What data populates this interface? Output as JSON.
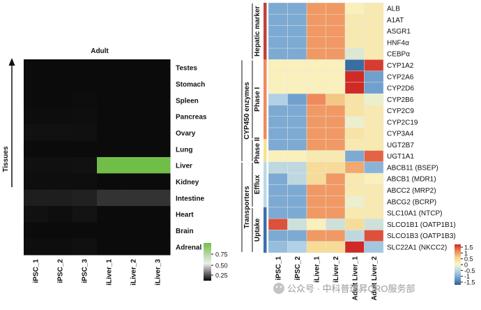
{
  "chart_data": [
    {
      "type": "heatmap",
      "title": "Adult",
      "ylabel": "Tissues",
      "columns": [
        "iPSC_1",
        "iPSC_2",
        "iPSC_3",
        "iLiver_1",
        "iLiver_2",
        "iLiver_3"
      ],
      "rows": [
        "Testes",
        "Stomach",
        "Spleen",
        "Pancreas",
        "Ovary",
        "Lung",
        "Liver",
        "Kidney",
        "Intestine",
        "Heart",
        "Brain",
        "Adrenal"
      ],
      "values": [
        [
          0.02,
          0.02,
          0.02,
          0.02,
          0.02,
          0.02
        ],
        [
          0.02,
          0.02,
          0.02,
          0.02,
          0.02,
          0.02
        ],
        [
          0.02,
          0.02,
          0.03,
          0.02,
          0.02,
          0.02
        ],
        [
          0.03,
          0.03,
          0.04,
          0.02,
          0.02,
          0.02
        ],
        [
          0.06,
          0.06,
          0.05,
          0.02,
          0.02,
          0.02
        ],
        [
          0.02,
          0.02,
          0.02,
          0.02,
          0.02,
          0.02
        ],
        [
          0.05,
          0.05,
          0.06,
          0.9,
          0.9,
          0.9
        ],
        [
          0.04,
          0.04,
          0.04,
          0.02,
          0.02,
          0.02
        ],
        [
          0.14,
          0.14,
          0.16,
          0.28,
          0.28,
          0.28
        ],
        [
          0.06,
          0.04,
          0.07,
          0.02,
          0.02,
          0.02
        ],
        [
          0.02,
          0.02,
          0.02,
          0.02,
          0.02,
          0.02
        ],
        [
          0.04,
          0.04,
          0.05,
          0.02,
          0.02,
          0.02
        ]
      ],
      "colorbar": {
        "ticks": [
          "0.75",
          "0.50",
          "0.25"
        ],
        "range": [
          0,
          0.9
        ]
      }
    },
    {
      "type": "heatmap",
      "columns": [
        "iPSC_1",
        "iPSC_2",
        "iLiver_1",
        "iLiver_2",
        "Adult Liver_1",
        "Adult Liver_2"
      ],
      "rows": [
        "ALB",
        "A1AT",
        "ASGR1",
        "HNF4α",
        "CEBPα",
        "CYP1A2",
        "CYP2A6",
        "CYP2D6",
        "CYP2B6",
        "CYP2C9",
        "CYP2C19",
        "CYP3A4",
        "UGT2B7",
        "UGT1A1",
        "ABCB11 (BSEP)",
        "ABCB1 (MDR1)",
        "ABCC2 (MRP2)",
        "ABCG2 (BCRP)",
        "SLC10A1 (NTCP)",
        "SLCO1B1 (OATP1B1)",
        "SLCO1B3 (OATP1B3)",
        "SLC22A1 (NKCC2)"
      ],
      "values": [
        [
          -0.9,
          -0.9,
          0.9,
          0.9,
          0.1,
          0.2
        ],
        [
          -0.9,
          -0.9,
          0.9,
          0.9,
          0.2,
          0.2
        ],
        [
          -0.9,
          -0.9,
          0.9,
          0.9,
          0.2,
          0.2
        ],
        [
          -0.9,
          -0.9,
          0.9,
          0.9,
          0.2,
          0.2
        ],
        [
          -0.9,
          -0.9,
          0.9,
          0.9,
          -0.2,
          0.2
        ],
        [
          0.1,
          0.1,
          0.1,
          0.1,
          -1.4,
          1.4
        ],
        [
          0.1,
          0.1,
          0.1,
          0.1,
          1.5,
          -1.0
        ],
        [
          0.1,
          0.1,
          0.1,
          0.1,
          1.5,
          -1.0
        ],
        [
          -0.5,
          -1.0,
          1.0,
          0.6,
          0.3,
          -0.1
        ],
        [
          -0.9,
          -0.9,
          0.9,
          0.9,
          0.3,
          0.2
        ],
        [
          -0.9,
          -0.9,
          0.9,
          0.9,
          -0.1,
          0.2
        ],
        [
          -0.9,
          -0.9,
          0.9,
          0.9,
          0.3,
          0.2
        ],
        [
          -0.9,
          -0.9,
          0.9,
          0.9,
          0.2,
          0.2
        ],
        [
          0.1,
          0.1,
          0.2,
          0.2,
          -0.9,
          1.2
        ],
        [
          -0.4,
          -0.4,
          0.4,
          0.4,
          0.8,
          -0.8
        ],
        [
          -0.9,
          -0.4,
          0.4,
          0.9,
          0.2,
          0.1
        ],
        [
          -0.9,
          -0.9,
          0.9,
          0.9,
          0.2,
          0.2
        ],
        [
          -0.9,
          -0.9,
          0.9,
          0.9,
          -0.1,
          0.2
        ],
        [
          -0.9,
          -0.9,
          0.9,
          0.9,
          0.2,
          0.2
        ],
        [
          1.3,
          -0.3,
          0.1,
          -0.3,
          0.4,
          -0.3
        ],
        [
          -0.9,
          -0.9,
          0.9,
          0.9,
          -0.4,
          1.3
        ],
        [
          -0.7,
          -0.5,
          0.4,
          0.4,
          1.5,
          -0.6
        ]
      ],
      "row_groups": [
        {
          "label": "Hepatic marker",
          "start": 0,
          "end": 4,
          "color": "#c0403c"
        },
        {
          "label": "Phase I",
          "start": 5,
          "end": 11,
          "color": "#f08a5d"
        },
        {
          "label": "Phase II",
          "start": 12,
          "end": 13,
          "color": "#f6e48c"
        },
        {
          "label": "Efflux",
          "start": 14,
          "end": 17,
          "color": "#bcd8e8"
        },
        {
          "label": "Uptake",
          "start": 18,
          "end": 21,
          "color": "#3d6fa8"
        }
      ],
      "row_supergroups": [
        {
          "label": "CYP450 enzymes",
          "start": 5,
          "end": 13
        },
        {
          "label": "Transporters",
          "start": 14,
          "end": 21
        }
      ],
      "colorbar": {
        "ticks": [
          "1.5",
          "1",
          "0.5",
          "0",
          "-0.5",
          "-1",
          "-1.5"
        ],
        "range": [
          -1.5,
          1.5
        ]
      }
    }
  ],
  "watermark": "公众号 · 中科普瑞昇CRO服务部"
}
